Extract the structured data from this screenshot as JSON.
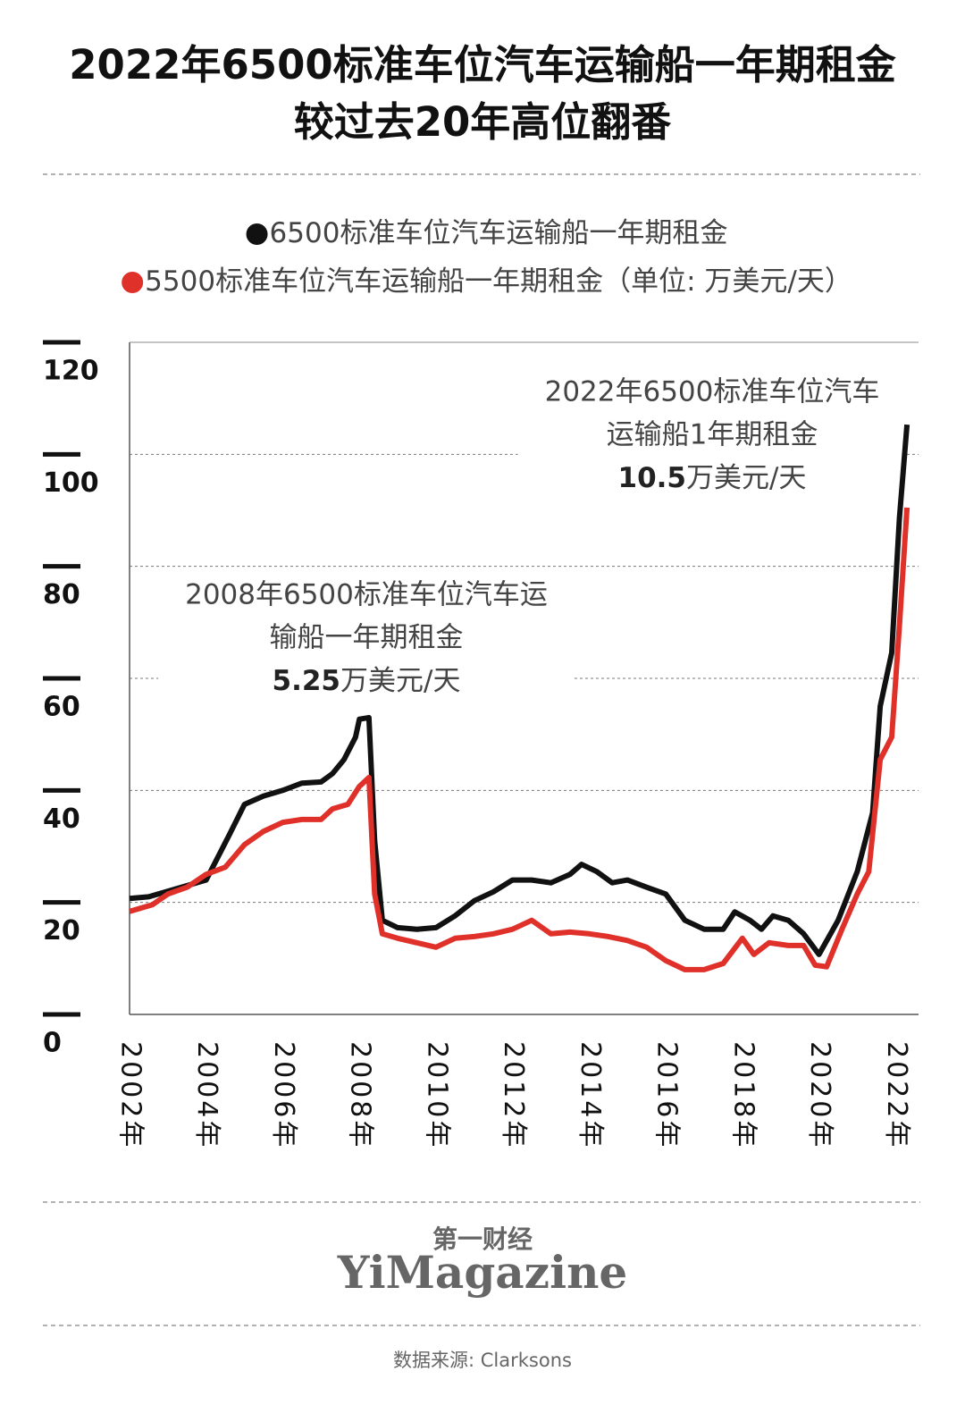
{
  "chart_data": {
    "type": "line",
    "title": [
      "2022年6500标准车位汽车运输船一年期租金",
      "较过去20年高位翻番"
    ],
    "unit_note": "（单位: 万美元/天）",
    "xlim": [
      2002,
      2022.6
    ],
    "xticks": [
      {
        "value": 2002,
        "label": "2002年"
      },
      {
        "value": 2004,
        "label": "2004年"
      },
      {
        "value": 2006,
        "label": "2006年"
      },
      {
        "value": 2008,
        "label": "2008年"
      },
      {
        "value": 2010,
        "label": "2010年"
      },
      {
        "value": 2012,
        "label": "2012年"
      },
      {
        "value": 2014,
        "label": "2014年"
      },
      {
        "value": 2016,
        "label": "2016年"
      },
      {
        "value": 2018,
        "label": "2018年"
      },
      {
        "value": 2020,
        "label": "2020年"
      },
      {
        "value": 2022,
        "label": "2022年"
      }
    ],
    "ylim": [
      0,
      120
    ],
    "yticks": [
      0,
      20,
      40,
      60,
      80,
      100,
      120
    ],
    "grid": true,
    "series": [
      {
        "name": "6500标准车位汽车运输船一年期租金",
        "color": "#111111",
        "x": [
          2002.0,
          2002.5,
          2003.0,
          2003.5,
          2004.0,
          2004.3,
          2004.6,
          2005.0,
          2005.5,
          2006.0,
          2006.5,
          2007.0,
          2007.3,
          2007.6,
          2007.9,
          2008.0,
          2008.25,
          2008.4,
          2008.6,
          2009.0,
          2009.5,
          2010.0,
          2010.5,
          2011.0,
          2011.5,
          2012.0,
          2012.5,
          2013.0,
          2013.5,
          2013.8,
          2014.2,
          2014.6,
          2015.0,
          2015.5,
          2016.0,
          2016.5,
          2017.0,
          2017.5,
          2017.8,
          2018.2,
          2018.5,
          2018.8,
          2019.2,
          2019.6,
          2020.0,
          2020.5,
          2021.0,
          2021.4,
          2021.6,
          2021.9,
          2022.1,
          2022.3
        ],
        "values": [
          20.7,
          21,
          22,
          23,
          24,
          28,
          32,
          37.5,
          39,
          40,
          41.3,
          41.5,
          43,
          45.5,
          49.5,
          52.7,
          53,
          31,
          16.8,
          15.5,
          15.2,
          15.5,
          17.6,
          20.3,
          21.9,
          24,
          24,
          23.5,
          25,
          26.8,
          25.5,
          23.5,
          24,
          22.7,
          21.5,
          16.8,
          15.2,
          15.2,
          18.3,
          16.8,
          15.2,
          17.6,
          16.8,
          14.4,
          10.7,
          16.8,
          25.5,
          36,
          55,
          64.6,
          88.6,
          105.3
        ]
      },
      {
        "name": "5500标准车位汽车运输船一年期租金",
        "color": "#e0302a",
        "x": [
          2002.0,
          2002.6,
          2003.0,
          2003.5,
          2004.0,
          2004.5,
          2005.0,
          2005.5,
          2006.0,
          2006.5,
          2007.0,
          2007.3,
          2007.7,
          2008.0,
          2008.25,
          2008.4,
          2008.6,
          2009.0,
          2009.5,
          2010.0,
          2010.5,
          2011.0,
          2011.5,
          2012.0,
          2012.5,
          2013.0,
          2013.5,
          2014.0,
          2014.5,
          2015.0,
          2015.5,
          2016.0,
          2016.5,
          2017.0,
          2017.5,
          2018.0,
          2018.3,
          2018.7,
          2019.2,
          2019.6,
          2019.9,
          2020.2,
          2020.6,
          2021.0,
          2021.3,
          2021.6,
          2021.9,
          2022.1,
          2022.3
        ],
        "values": [
          18.4,
          19.6,
          21.5,
          22.7,
          25,
          26.3,
          30.3,
          32.7,
          34.3,
          34.8,
          34.8,
          36.7,
          37.5,
          40.7,
          42.3,
          21.5,
          14.4,
          13.6,
          12.8,
          12,
          13.6,
          13.9,
          14.4,
          15.2,
          16.8,
          14.4,
          14.7,
          14.4,
          13.9,
          13.2,
          12,
          9.6,
          8,
          8,
          9.1,
          13.6,
          10.7,
          12.8,
          12.3,
          12.3,
          8.8,
          8.5,
          15.2,
          21.5,
          25.5,
          45.5,
          49.5,
          69.4,
          90.5
        ]
      }
    ],
    "annotations": [
      {
        "lines": [
          "2022年6500标准车位汽车",
          "运输船1年期租金"
        ],
        "number": "10.5",
        "unit": "万美元/天"
      },
      {
        "lines": [
          "2008年6500标准车位汽车运",
          "输船一年期租金"
        ],
        "number": "5.25",
        "unit": "万美元/天"
      }
    ]
  },
  "footer": {
    "brand_cn": "第一财经",
    "brand_en": "YiMagazine",
    "source": "数据来源: Clarksons"
  }
}
